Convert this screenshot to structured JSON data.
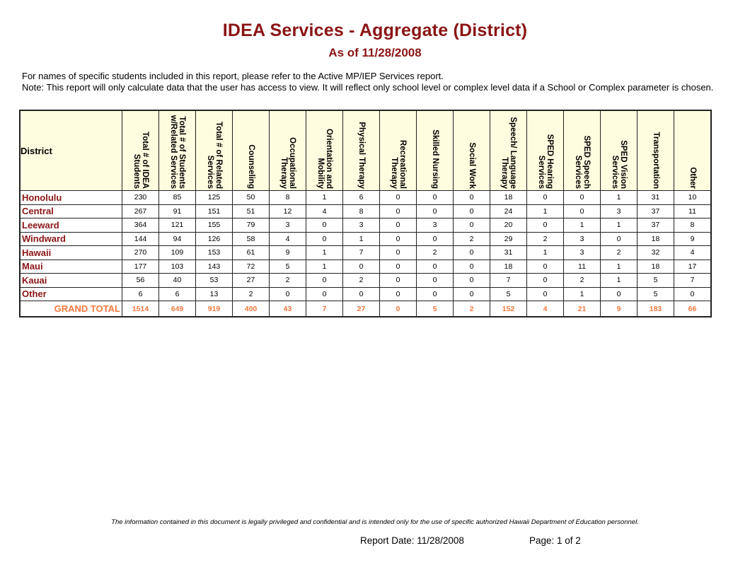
{
  "header": {
    "title": "IDEA Services - Aggregate  (District)",
    "subtitle": "As of 11/28/2008"
  },
  "notes": {
    "line1": "For names of specific students included in this report, please refer to the Active MP/IEP Services report.",
    "line2": "Note: This report will only calculate data that the user has access to view. It will reflect only school level or complex level data if a School or Complex parameter is chosen."
  },
  "table": {
    "district_header": "District",
    "columns": [
      "Total # of IDEA Students",
      "Total # of Students w/Related Services",
      "Total # of Related Services",
      "Counseling",
      "Occupational Therapy",
      "Orientation and Mobility",
      "Physical Therapy",
      "Recreational Therapy",
      "Skilled Nursing",
      "Social Work",
      "Speech/ Language Therapy",
      "SPED Hearing Services",
      "SPED Speech Services",
      "SPED Vision Services",
      "Transportation",
      "Other"
    ],
    "rows": [
      {
        "district": "Honolulu",
        "values": [
          "230",
          "85",
          "125",
          "50",
          "8",
          "1",
          "6",
          "0",
          "0",
          "0",
          "18",
          "0",
          "0",
          "1",
          "31",
          "10"
        ]
      },
      {
        "district": "Central",
        "values": [
          "267",
          "91",
          "151",
          "51",
          "12",
          "4",
          "8",
          "0",
          "0",
          "0",
          "24",
          "1",
          "0",
          "3",
          "37",
          "11"
        ]
      },
      {
        "district": "Leeward",
        "values": [
          "364",
          "121",
          "155",
          "79",
          "3",
          "0",
          "3",
          "0",
          "3",
          "0",
          "20",
          "0",
          "1",
          "1",
          "37",
          "8"
        ]
      },
      {
        "district": "Windward",
        "values": [
          "144",
          "94",
          "126",
          "58",
          "4",
          "0",
          "1",
          "0",
          "0",
          "2",
          "29",
          "2",
          "3",
          "0",
          "18",
          "9"
        ]
      },
      {
        "district": "Hawaii",
        "values": [
          "270",
          "109",
          "153",
          "61",
          "9",
          "1",
          "7",
          "0",
          "2",
          "0",
          "31",
          "1",
          "3",
          "2",
          "32",
          "4"
        ]
      },
      {
        "district": "Maui",
        "values": [
          "177",
          "103",
          "143",
          "72",
          "5",
          "1",
          "0",
          "0",
          "0",
          "0",
          "18",
          "0",
          "11",
          "1",
          "18",
          "17"
        ]
      },
      {
        "district": "Kauai",
        "values": [
          "56",
          "40",
          "53",
          "27",
          "2",
          "0",
          "2",
          "0",
          "0",
          "0",
          "7",
          "0",
          "2",
          "1",
          "5",
          "7"
        ]
      },
      {
        "district": "Other",
        "values": [
          "6",
          "6",
          "13",
          "2",
          "0",
          "0",
          "0",
          "0",
          "0",
          "0",
          "5",
          "0",
          "1",
          "0",
          "5",
          "0"
        ]
      }
    ],
    "total": {
      "label": "GRAND TOTAL",
      "values": [
        "1514",
        "649",
        "919",
        "400",
        "43",
        "7",
        "27",
        "0",
        "5",
        "2",
        "152",
        "4",
        "21",
        "9",
        "183",
        "66"
      ]
    }
  },
  "colors": {
    "title": "#8B1414",
    "district_label": "#8B1414",
    "grand_total": "#F47A40",
    "header_bg": "#FFFDE0"
  },
  "footer": {
    "disclaimer": "The information contained in this document is legally privileged and confidential and is intended only for the use of specific authorized Hawaii Department of Education personnel.",
    "report_date": "Report Date:  11/28/2008",
    "page": "Page:  1 of 2"
  }
}
